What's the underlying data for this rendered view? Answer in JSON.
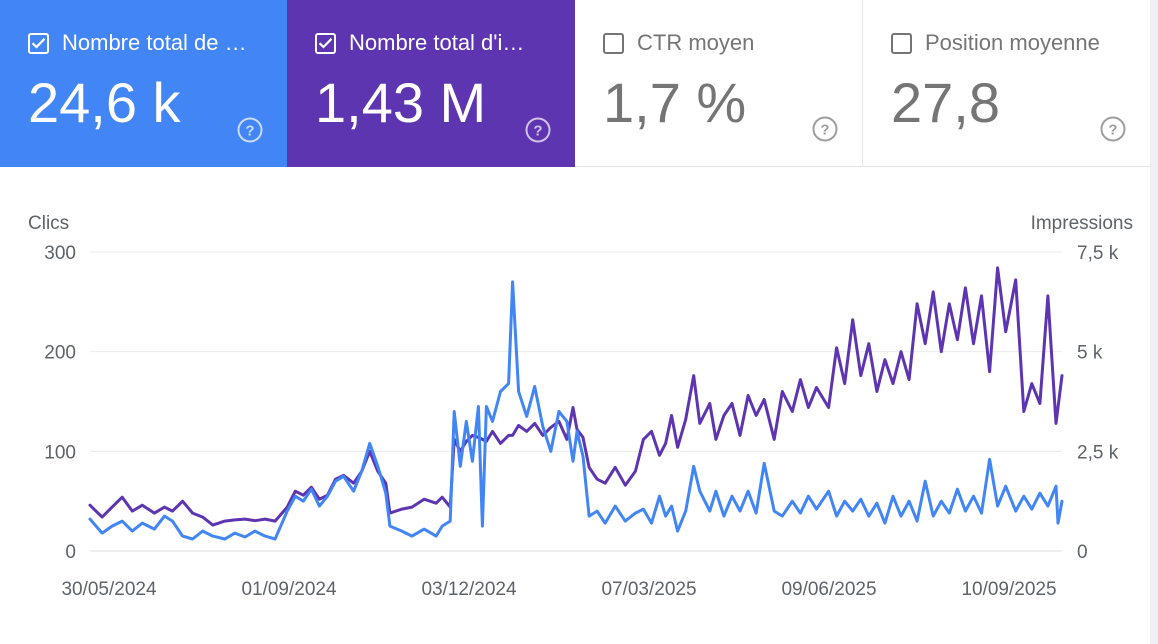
{
  "metrics": [
    {
      "label": "Nombre total de …",
      "value": "24,6 k",
      "checked": true,
      "color": "#4285f4"
    },
    {
      "label": "Nombre total d'i…",
      "value": "1,43 M",
      "checked": true,
      "color": "#5e35b1"
    },
    {
      "label": "CTR moyen",
      "value": "1,7 %",
      "checked": false
    },
    {
      "label": "Position moyenne",
      "value": "27,8",
      "checked": false
    }
  ],
  "chart_data": {
    "type": "line",
    "ylabel": "Clics",
    "y2label": "Impressions",
    "ylim": [
      0,
      300
    ],
    "y2lim": [
      0,
      7500
    ],
    "yticks": [
      "0",
      "100",
      "200",
      "300"
    ],
    "y2ticks": [
      "0",
      "2,5 k",
      "5 k",
      "7,5 k"
    ],
    "xticks": [
      "30/05/2024",
      "01/09/2024",
      "03/12/2024",
      "07/03/2025",
      "09/06/2025",
      "10/09/2025"
    ],
    "x_range": [
      "2024-05-30",
      "2025-09-25"
    ],
    "grid": true,
    "series": [
      {
        "axis": "left",
        "color": "#4285f4",
        "points": [
          [
            "2024-05-30",
            32
          ],
          [
            "2024-06-05",
            18
          ],
          [
            "2024-06-10",
            25
          ],
          [
            "2024-06-15",
            30
          ],
          [
            "2024-06-20",
            20
          ],
          [
            "2024-06-25",
            28
          ],
          [
            "2024-07-01",
            22
          ],
          [
            "2024-07-06",
            35
          ],
          [
            "2024-07-10",
            30
          ],
          [
            "2024-07-15",
            15
          ],
          [
            "2024-07-20",
            12
          ],
          [
            "2024-07-25",
            20
          ],
          [
            "2024-07-30",
            15
          ],
          [
            "2024-08-05",
            12
          ],
          [
            "2024-08-10",
            18
          ],
          [
            "2024-08-15",
            14
          ],
          [
            "2024-08-20",
            20
          ],
          [
            "2024-08-25",
            15
          ],
          [
            "2024-08-30",
            12
          ],
          [
            "2024-09-05",
            40
          ],
          [
            "2024-09-09",
            55
          ],
          [
            "2024-09-13",
            50
          ],
          [
            "2024-09-17",
            62
          ],
          [
            "2024-09-21",
            45
          ],
          [
            "2024-09-25",
            55
          ],
          [
            "2024-09-29",
            70
          ],
          [
            "2024-10-03",
            75
          ],
          [
            "2024-10-08",
            60
          ],
          [
            "2024-10-12",
            80
          ],
          [
            "2024-10-16",
            108
          ],
          [
            "2024-10-20",
            85
          ],
          [
            "2024-10-24",
            58
          ],
          [
            "2024-10-26",
            25
          ],
          [
            "2024-11-01",
            20
          ],
          [
            "2024-11-06",
            15
          ],
          [
            "2024-11-12",
            22
          ],
          [
            "2024-11-18",
            15
          ],
          [
            "2024-11-21",
            25
          ],
          [
            "2024-11-25",
            30
          ],
          [
            "2024-11-27",
            140
          ],
          [
            "2024-11-30",
            85
          ],
          [
            "2024-12-03",
            130
          ],
          [
            "2024-12-06",
            90
          ],
          [
            "2024-12-09",
            145
          ],
          [
            "2024-12-11",
            25
          ],
          [
            "2024-12-13",
            145
          ],
          [
            "2024-12-16",
            130
          ],
          [
            "2024-12-20",
            160
          ],
          [
            "2024-12-24",
            168
          ],
          [
            "2024-12-26",
            270
          ],
          [
            "2024-12-29",
            160
          ],
          [
            "2025-01-02",
            135
          ],
          [
            "2025-01-06",
            165
          ],
          [
            "2025-01-10",
            125
          ],
          [
            "2025-01-14",
            100
          ],
          [
            "2025-01-18",
            140
          ],
          [
            "2025-01-22",
            130
          ],
          [
            "2025-01-25",
            90
          ],
          [
            "2025-01-27",
            120
          ],
          [
            "2025-01-30",
            95
          ],
          [
            "2025-02-02",
            35
          ],
          [
            "2025-02-06",
            40
          ],
          [
            "2025-02-10",
            28
          ],
          [
            "2025-02-15",
            45
          ],
          [
            "2025-02-20",
            30
          ],
          [
            "2025-02-25",
            38
          ],
          [
            "2025-03-01",
            42
          ],
          [
            "2025-03-05",
            28
          ],
          [
            "2025-03-09",
            55
          ],
          [
            "2025-03-12",
            35
          ],
          [
            "2025-03-15",
            45
          ],
          [
            "2025-03-18",
            20
          ],
          [
            "2025-03-22",
            40
          ],
          [
            "2025-03-26",
            85
          ],
          [
            "2025-03-29",
            60
          ],
          [
            "2025-04-03",
            40
          ],
          [
            "2025-04-06",
            60
          ],
          [
            "2025-04-10",
            35
          ],
          [
            "2025-04-14",
            55
          ],
          [
            "2025-04-18",
            40
          ],
          [
            "2025-04-22",
            60
          ],
          [
            "2025-04-26",
            38
          ],
          [
            "2025-04-30",
            88
          ],
          [
            "2025-05-05",
            40
          ],
          [
            "2025-05-09",
            35
          ],
          [
            "2025-05-14",
            50
          ],
          [
            "2025-05-18",
            38
          ],
          [
            "2025-05-22",
            55
          ],
          [
            "2025-05-26",
            42
          ],
          [
            "2025-06-01",
            60
          ],
          [
            "2025-06-05",
            35
          ],
          [
            "2025-06-09",
            50
          ],
          [
            "2025-06-13",
            40
          ],
          [
            "2025-06-17",
            52
          ],
          [
            "2025-06-21",
            35
          ],
          [
            "2025-06-25",
            48
          ],
          [
            "2025-06-29",
            28
          ],
          [
            "2025-07-03",
            55
          ],
          [
            "2025-07-07",
            35
          ],
          [
            "2025-07-11",
            50
          ],
          [
            "2025-07-15",
            30
          ],
          [
            "2025-07-19",
            70
          ],
          [
            "2025-07-23",
            35
          ],
          [
            "2025-07-27",
            50
          ],
          [
            "2025-07-31",
            38
          ],
          [
            "2025-08-04",
            62
          ],
          [
            "2025-08-08",
            40
          ],
          [
            "2025-08-12",
            55
          ],
          [
            "2025-08-16",
            38
          ],
          [
            "2025-08-20",
            92
          ],
          [
            "2025-08-24",
            45
          ],
          [
            "2025-08-28",
            65
          ],
          [
            "2025-09-02",
            40
          ],
          [
            "2025-09-06",
            55
          ],
          [
            "2025-09-10",
            42
          ],
          [
            "2025-09-14",
            58
          ],
          [
            "2025-09-18",
            45
          ],
          [
            "2025-09-22",
            65
          ],
          [
            "2025-09-23",
            28
          ],
          [
            "2025-09-25",
            50
          ]
        ]
      },
      {
        "axis": "right",
        "color": "#5e35b1",
        "points": [
          [
            "2024-05-30",
            1150
          ],
          [
            "2024-06-05",
            850
          ],
          [
            "2024-06-10",
            1100
          ],
          [
            "2024-06-15",
            1350
          ],
          [
            "2024-06-20",
            1000
          ],
          [
            "2024-06-25",
            1150
          ],
          [
            "2024-07-01",
            950
          ],
          [
            "2024-07-06",
            1100
          ],
          [
            "2024-07-10",
            1000
          ],
          [
            "2024-07-15",
            1250
          ],
          [
            "2024-07-20",
            950
          ],
          [
            "2024-07-25",
            850
          ],
          [
            "2024-07-30",
            650
          ],
          [
            "2024-08-05",
            750
          ],
          [
            "2024-08-10",
            780
          ],
          [
            "2024-08-15",
            800
          ],
          [
            "2024-08-20",
            760
          ],
          [
            "2024-08-25",
            800
          ],
          [
            "2024-08-30",
            750
          ],
          [
            "2024-09-05",
            1100
          ],
          [
            "2024-09-09",
            1500
          ],
          [
            "2024-09-13",
            1400
          ],
          [
            "2024-09-17",
            1600
          ],
          [
            "2024-09-21",
            1300
          ],
          [
            "2024-09-25",
            1400
          ],
          [
            "2024-09-29",
            1800
          ],
          [
            "2024-10-03",
            1900
          ],
          [
            "2024-10-08",
            1700
          ],
          [
            "2024-10-12",
            2000
          ],
          [
            "2024-10-16",
            2500
          ],
          [
            "2024-10-20",
            2000
          ],
          [
            "2024-10-24",
            1700
          ],
          [
            "2024-10-26",
            950
          ],
          [
            "2024-11-01",
            1050
          ],
          [
            "2024-11-06",
            1100
          ],
          [
            "2024-11-12",
            1300
          ],
          [
            "2024-11-18",
            1200
          ],
          [
            "2024-11-21",
            1350
          ],
          [
            "2024-11-25",
            1100
          ],
          [
            "2024-11-27",
            2800
          ],
          [
            "2024-11-30",
            2500
          ],
          [
            "2024-12-03",
            2750
          ],
          [
            "2024-12-06",
            2900
          ],
          [
            "2024-12-09",
            2850
          ],
          [
            "2024-12-13",
            2750
          ],
          [
            "2024-12-16",
            3000
          ],
          [
            "2024-12-20",
            2700
          ],
          [
            "2024-12-24",
            2900
          ],
          [
            "2024-12-26",
            2900
          ],
          [
            "2024-12-29",
            3150
          ],
          [
            "2025-01-02",
            3000
          ],
          [
            "2025-01-06",
            3200
          ],
          [
            "2025-01-10",
            2900
          ],
          [
            "2025-01-14",
            3100
          ],
          [
            "2025-01-18",
            3250
          ],
          [
            "2025-01-22",
            2800
          ],
          [
            "2025-01-25",
            3600
          ],
          [
            "2025-01-27",
            3050
          ],
          [
            "2025-01-30",
            2850
          ],
          [
            "2025-02-02",
            2100
          ],
          [
            "2025-02-06",
            1800
          ],
          [
            "2025-02-10",
            1700
          ],
          [
            "2025-02-15",
            2100
          ],
          [
            "2025-02-20",
            1650
          ],
          [
            "2025-02-25",
            2000
          ],
          [
            "2025-03-01",
            2800
          ],
          [
            "2025-03-05",
            3000
          ],
          [
            "2025-03-09",
            2400
          ],
          [
            "2025-03-12",
            2700
          ],
          [
            "2025-03-15",
            3400
          ],
          [
            "2025-03-18",
            2600
          ],
          [
            "2025-03-22",
            3300
          ],
          [
            "2025-03-26",
            4400
          ],
          [
            "2025-03-29",
            3200
          ],
          [
            "2025-04-03",
            3700
          ],
          [
            "2025-04-06",
            2800
          ],
          [
            "2025-04-10",
            3400
          ],
          [
            "2025-04-14",
            3700
          ],
          [
            "2025-04-18",
            2900
          ],
          [
            "2025-04-22",
            3900
          ],
          [
            "2025-04-26",
            3400
          ],
          [
            "2025-04-30",
            3800
          ],
          [
            "2025-05-05",
            2800
          ],
          [
            "2025-05-09",
            4000
          ],
          [
            "2025-05-14",
            3500
          ],
          [
            "2025-05-18",
            4300
          ],
          [
            "2025-05-22",
            3600
          ],
          [
            "2025-05-26",
            4100
          ],
          [
            "2025-06-01",
            3600
          ],
          [
            "2025-06-05",
            5100
          ],
          [
            "2025-06-09",
            4200
          ],
          [
            "2025-06-13",
            5800
          ],
          [
            "2025-06-17",
            4400
          ],
          [
            "2025-06-21",
            5200
          ],
          [
            "2025-06-25",
            4000
          ],
          [
            "2025-06-29",
            4800
          ],
          [
            "2025-07-03",
            4200
          ],
          [
            "2025-07-07",
            5000
          ],
          [
            "2025-07-11",
            4300
          ],
          [
            "2025-07-15",
            6200
          ],
          [
            "2025-07-19",
            5200
          ],
          [
            "2025-07-23",
            6500
          ],
          [
            "2025-07-27",
            5000
          ],
          [
            "2025-07-31",
            6200
          ],
          [
            "2025-08-04",
            5300
          ],
          [
            "2025-08-08",
            6600
          ],
          [
            "2025-08-12",
            5200
          ],
          [
            "2025-08-16",
            6400
          ],
          [
            "2025-08-20",
            4500
          ],
          [
            "2025-08-24",
            7100
          ],
          [
            "2025-08-28",
            5500
          ],
          [
            "2025-09-02",
            6800
          ],
          [
            "2025-09-06",
            3500
          ],
          [
            "2025-09-10",
            4200
          ],
          [
            "2025-09-14",
            3700
          ],
          [
            "2025-09-18",
            6400
          ],
          [
            "2025-09-22",
            3200
          ],
          [
            "2025-09-25",
            4400
          ]
        ]
      }
    ]
  }
}
